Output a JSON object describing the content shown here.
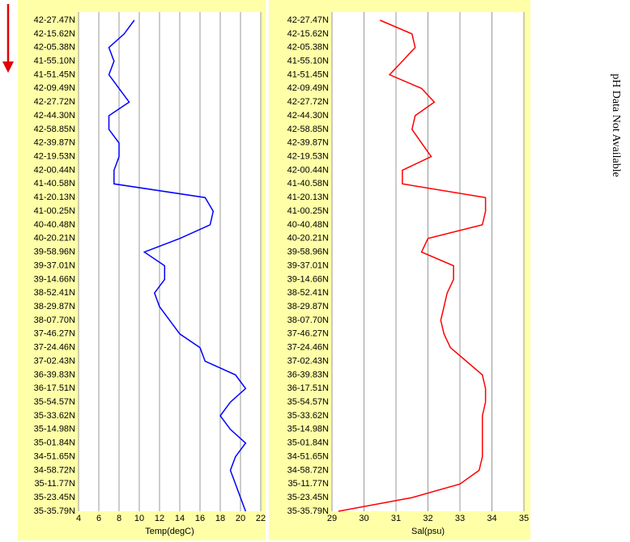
{
  "chart_data": [
    {
      "type": "line",
      "xlabel": "Temp(degC)",
      "color": "#0000ff",
      "grid": true,
      "xlim": [
        4,
        22
      ],
      "xticks": [
        4,
        6,
        8,
        10,
        12,
        14,
        16,
        18,
        20,
        22
      ],
      "categories": [
        "42-27.47N",
        "42-15.62N",
        "42-05.38N",
        "41-55.10N",
        "41-51.45N",
        "42-09.49N",
        "42-27.72N",
        "42-44.30N",
        "42-58.85N",
        "42-39.87N",
        "42-19.53N",
        "42-00.44N",
        "41-40.58N",
        "41-20.13N",
        "41-00.25N",
        "40-40.48N",
        "40-20.21N",
        "39-58.96N",
        "39-37.01N",
        "39-14.66N",
        "38-52.41N",
        "38-29.87N",
        "38-07.70N",
        "37-46.27N",
        "37-24.46N",
        "37-02.43N",
        "36-39.83N",
        "36-17.51N",
        "35-54.57N",
        "35-33.62N",
        "35-14.98N",
        "35-01.84N",
        "34-51.65N",
        "34-58.72N",
        "35-11.77N",
        "35-23.45N",
        "35-35.79N"
      ],
      "values": [
        9.5,
        8.5,
        7,
        7.5,
        7,
        8,
        9,
        7,
        7,
        8,
        8,
        7.5,
        7.5,
        16.5,
        17.3,
        17,
        14,
        10.5,
        12.5,
        12.5,
        11.5,
        12,
        13,
        14,
        16,
        16.5,
        19.5,
        20.5,
        19,
        18,
        19,
        20.5,
        19.5,
        19,
        19.5,
        20,
        20.5
      ]
    },
    {
      "type": "line",
      "xlabel": "Sal(psu)",
      "color": "#ff0000",
      "grid": true,
      "xlim": [
        29,
        35
      ],
      "xticks": [
        29,
        30,
        31,
        32,
        33,
        34,
        35
      ],
      "categories": [
        "42-27.47N",
        "42-15.62N",
        "42-05.38N",
        "41-55.10N",
        "41-51.45N",
        "42-09.49N",
        "42-27.72N",
        "42-44.30N",
        "42-58.85N",
        "42-39.87N",
        "42-19.53N",
        "42-00.44N",
        "41-40.58N",
        "41-20.13N",
        "41-00.25N",
        "40-40.48N",
        "40-20.21N",
        "39-58.96N",
        "39-37.01N",
        "39-14.66N",
        "38-52.41N",
        "38-29.87N",
        "38-07.70N",
        "37-46.27N",
        "37-24.46N",
        "37-02.43N",
        "36-39.83N",
        "36-17.51N",
        "35-54.57N",
        "35-33.62N",
        "35-14.98N",
        "35-01.84N",
        "34-51.65N",
        "34-58.72N",
        "35-11.77N",
        "35-23.45N",
        "35-35.79N"
      ],
      "values": [
        30.5,
        31.5,
        31.6,
        31.2,
        30.8,
        31.8,
        32.2,
        31.6,
        31.5,
        31.8,
        32.1,
        31.2,
        31.2,
        33.8,
        33.8,
        33.7,
        32.0,
        31.8,
        32.8,
        32.8,
        32.6,
        32.5,
        32.4,
        32.5,
        32.7,
        33.2,
        33.7,
        33.8,
        33.8,
        33.7,
        33.7,
        33.7,
        33.7,
        33.6,
        33.0,
        31.5,
        29.2
      ]
    }
  ],
  "ph_message": "pH Data Not Available"
}
